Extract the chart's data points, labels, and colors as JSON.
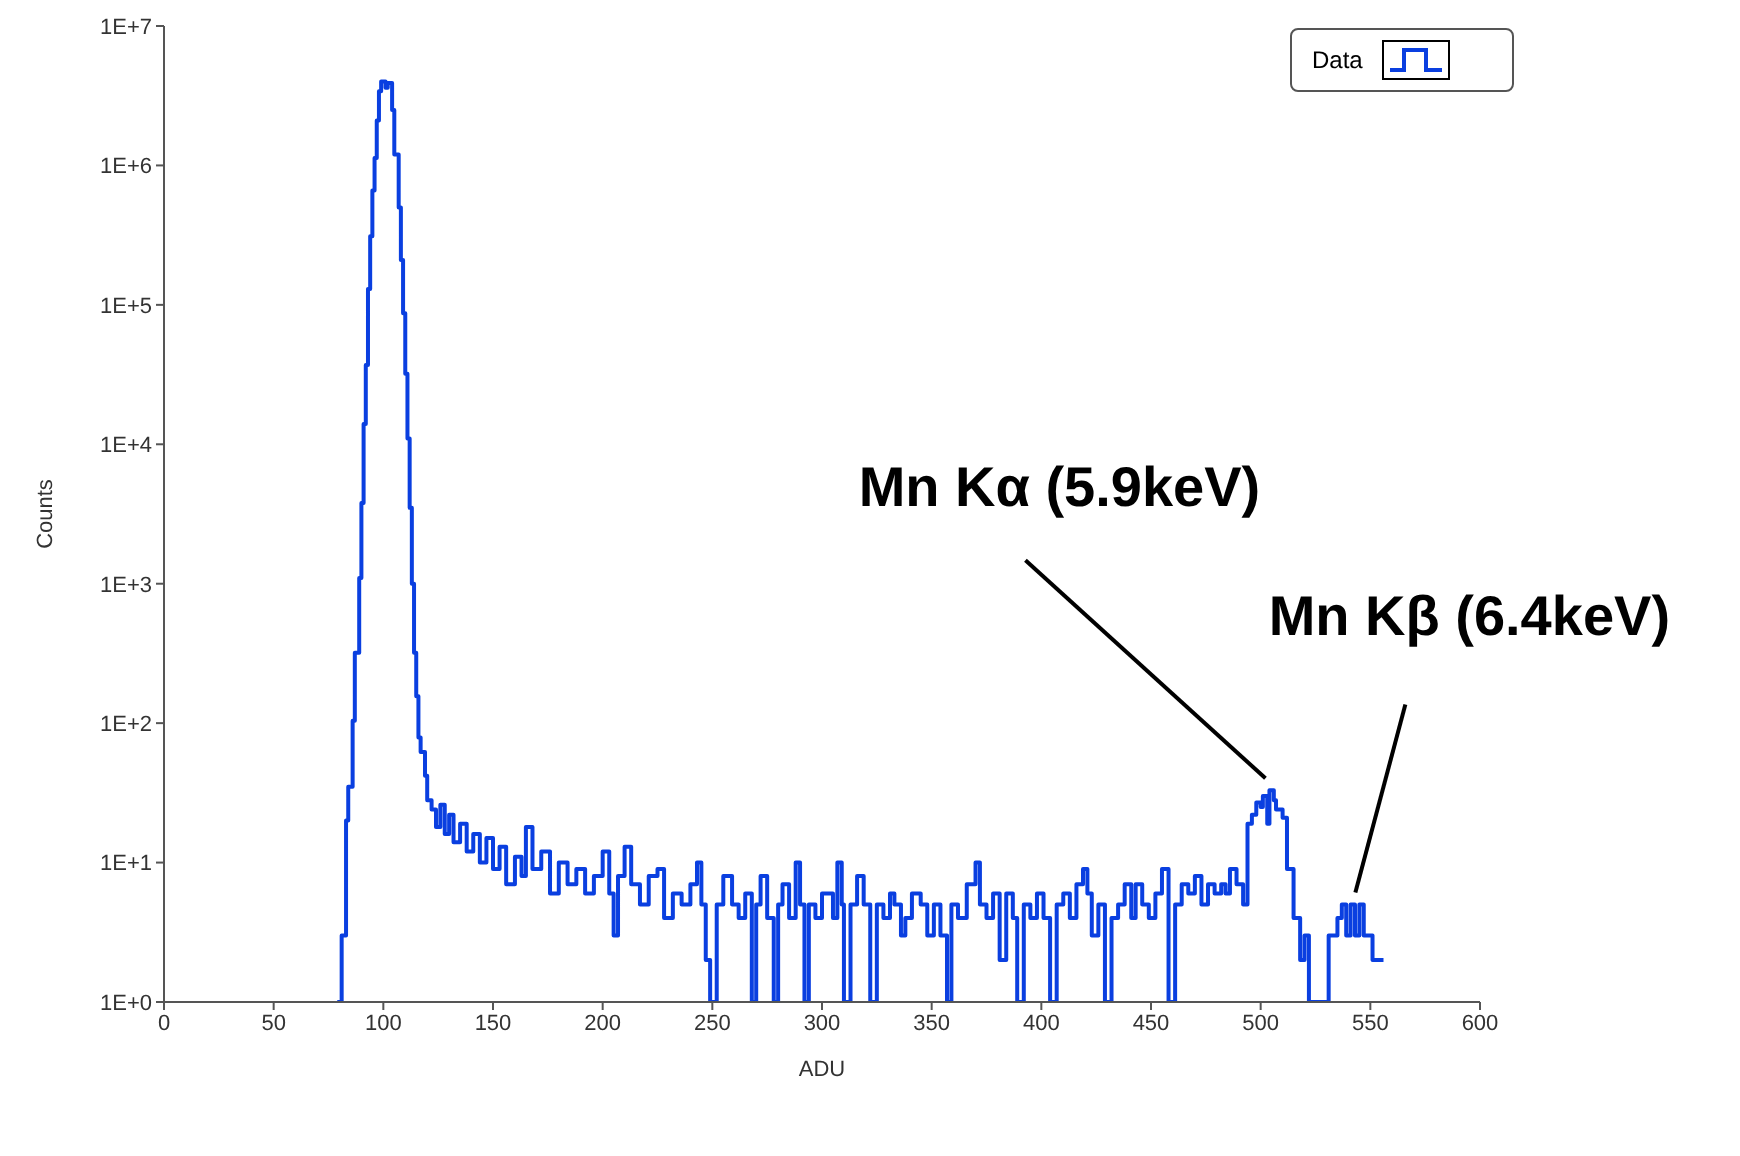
{
  "chart_data": {
    "type": "step",
    "xlabel": "ADU",
    "ylabel": "Counts",
    "log": "y",
    "grid": false,
    "legend": "top right",
    "marker": "none",
    "line_style": "solid",
    "xlim": [
      0,
      600
    ],
    "xticks": [
      0,
      50,
      100,
      150,
      200,
      250,
      300,
      350,
      400,
      450,
      500,
      550,
      600
    ],
    "ylim": [
      1,
      10000000
    ],
    "yticks": [
      {
        "value": 1,
        "label": "1E+0"
      },
      {
        "value": 10,
        "label": "1E+1"
      },
      {
        "value": 100,
        "label": "1E+2"
      },
      {
        "value": 1000,
        "label": "1E+3"
      },
      {
        "value": 10000,
        "label": "1E+4"
      },
      {
        "value": 100000,
        "label": "1E+5"
      },
      {
        "value": 1000000,
        "label": "1E+6"
      },
      {
        "value": 10000000,
        "label": "1E+7"
      }
    ],
    "annotations": [
      {
        "text": "Mn Kα (5.9keV)",
        "x": 504,
        "y": 33
      },
      {
        "text": "Mn Kβ (6.4keV)",
        "x": 545,
        "y": 5
      }
    ],
    "series": [
      {
        "name": "Data",
        "color": "#0a3fe0",
        "x": [
          79,
          81,
          83,
          84,
          86,
          87,
          89,
          90,
          91,
          92,
          93,
          94,
          95,
          96,
          97,
          98,
          99,
          101,
          102,
          104,
          105,
          107,
          108,
          109,
          110,
          111,
          112,
          113,
          114,
          115,
          116,
          117,
          119,
          120,
          122,
          124,
          126,
          128,
          130,
          132,
          135,
          138,
          141,
          144,
          147,
          150,
          153,
          156,
          160,
          163,
          165,
          168,
          172,
          176,
          180,
          184,
          188,
          192,
          196,
          200,
          203,
          205,
          207,
          210,
          213,
          217,
          221,
          225,
          228,
          232,
          236,
          240,
          243,
          245,
          247,
          249,
          252,
          255,
          259,
          262,
          265,
          268,
          270,
          272,
          275,
          278,
          280,
          282,
          285,
          288,
          290,
          292,
          294,
          297,
          300,
          302,
          305,
          307,
          309,
          310,
          313,
          316,
          319,
          322,
          325,
          328,
          331,
          333,
          336,
          338,
          341,
          345,
          348,
          351,
          354,
          357,
          359,
          362,
          366,
          370,
          372,
          375,
          378,
          381,
          384,
          387,
          389,
          392,
          395,
          398,
          401,
          404,
          407,
          410,
          413,
          416,
          419,
          421,
          423,
          426,
          429,
          432,
          435,
          438,
          441,
          443,
          446,
          449,
          452,
          455,
          458,
          461,
          464,
          467,
          470,
          473,
          476,
          479,
          482,
          484,
          486,
          489,
          492,
          494,
          496,
          498,
          500,
          501,
          503,
          504,
          506,
          507,
          510,
          512,
          515,
          518,
          520,
          522,
          531,
          535,
          537,
          539,
          541,
          543,
          545,
          547,
          549,
          551,
          553,
          556
        ],
        "values": [
          1,
          3,
          20,
          35,
          104,
          320,
          1100,
          3800,
          14000,
          37000,
          130000,
          310000,
          660000,
          1130000,
          2100000,
          3400000,
          4000000,
          3600000,
          3900000,
          2500000,
          1200000,
          500000,
          210000,
          87000,
          32000,
          11000,
          3500,
          1000,
          320,
          156,
          79,
          62,
          42,
          28,
          24,
          18,
          26,
          16,
          22,
          14,
          19,
          12,
          16,
          10,
          15,
          9,
          13,
          7,
          11,
          8,
          18,
          9,
          12,
          6,
          10,
          7,
          9,
          6,
          8,
          12,
          6,
          3,
          8,
          13,
          7,
          5,
          8,
          9,
          4,
          6,
          5,
          7,
          10,
          5,
          2,
          1,
          5,
          8,
          5,
          4,
          6,
          1,
          5,
          8,
          4,
          1,
          5,
          7,
          4,
          10,
          5,
          1,
          5,
          4,
          6,
          6,
          4,
          10,
          5,
          1,
          5,
          8,
          5,
          1,
          5,
          4,
          6,
          5,
          3,
          4,
          6,
          5,
          3,
          5,
          3,
          1,
          5,
          4,
          7,
          10,
          5,
          4,
          6,
          2,
          6,
          4,
          1,
          5,
          4,
          6,
          4,
          1,
          5,
          6,
          4,
          7,
          9,
          6,
          3,
          5,
          1,
          4,
          5,
          7,
          4,
          7,
          5,
          4,
          6,
          9,
          1,
          5,
          7,
          6,
          8,
          5,
          7,
          6,
          7,
          6,
          9,
          7,
          5,
          19,
          22,
          27,
          25,
          30,
          19,
          33,
          28,
          24,
          21,
          9,
          4,
          2,
          3,
          1,
          3,
          4,
          5,
          3,
          5,
          3,
          5,
          3,
          3,
          2,
          2,
          2
        ]
      }
    ]
  }
}
